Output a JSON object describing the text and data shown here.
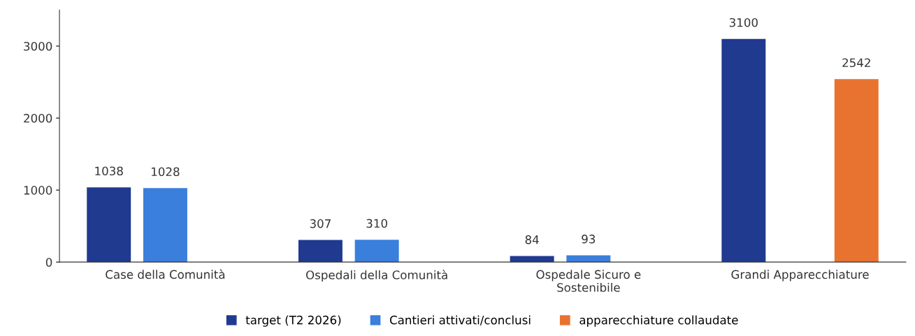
{
  "chart_data": {
    "type": "bar",
    "categories": [
      "Case della Comunità",
      "Ospedali della Comunità",
      "Ospedale Sicuro e\nSostenibile",
      "Grandi Apparecchiature"
    ],
    "series": [
      {
        "name": "target (T2 2026)",
        "color": "#1f3a8f",
        "values": [
          1038,
          307,
          84,
          3100
        ]
      },
      {
        "name": "Cantieri attivati/conclusi",
        "color": "#3a7fdc",
        "values": [
          1028,
          310,
          93,
          null
        ]
      },
      {
        "name": "apparecchiature collaudate",
        "color": "#e87330",
        "values": [
          null,
          null,
          null,
          2542
        ]
      }
    ],
    "ylim": [
      0,
      3500
    ],
    "yticks": [
      0,
      1000,
      2000,
      3000
    ],
    "data_labels": true,
    "grid": false,
    "legend": "bottom"
  }
}
